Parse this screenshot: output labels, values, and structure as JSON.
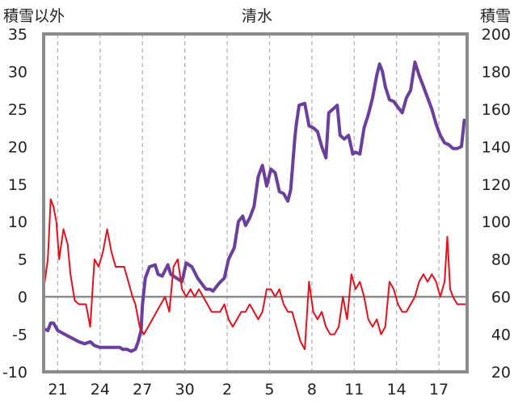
{
  "chart_data": {
    "type": "line",
    "title": "清水",
    "left_axis_label": "積雪以外",
    "right_axis_label": "積雪",
    "left_axis": {
      "min": -10,
      "max": 35,
      "ticks": [
        -10,
        -5,
        0,
        5,
        10,
        15,
        20,
        25,
        30,
        35
      ]
    },
    "right_axis": {
      "min": 20,
      "max": 200,
      "ticks": [
        20,
        40,
        60,
        80,
        100,
        120,
        140,
        160,
        180,
        200
      ]
    },
    "x_axis": {
      "min": 0,
      "max": 30,
      "tick_positions": [
        1,
        4,
        7,
        10,
        13,
        16,
        19,
        22,
        25,
        28
      ],
      "tick_labels": [
        "21",
        "24",
        "27",
        "30",
        "2",
        "5",
        "8",
        "11",
        "14",
        "17"
      ]
    },
    "grid": {
      "vertical": true,
      "style": "dashed",
      "zero_line": true
    },
    "colors": {
      "snow_depth": "#6b3fa0",
      "temperature": "#e8101a",
      "frame": "#8c8c8c",
      "zero_line": "#8c8c8c",
      "grid": "#b0b0b0"
    },
    "series": [
      {
        "axis": "right",
        "color": "#6b3fa0",
        "points": [
          [
            0.0,
            43
          ],
          [
            0.3,
            42
          ],
          [
            0.5,
            46
          ],
          [
            0.7,
            46
          ],
          [
            1.0,
            42
          ],
          [
            1.5,
            40
          ],
          [
            2.0,
            38
          ],
          [
            2.5,
            36
          ],
          [
            2.9,
            35
          ],
          [
            3.3,
            36
          ],
          [
            3.6,
            34
          ],
          [
            4.0,
            33
          ],
          [
            4.5,
            33
          ],
          [
            5.0,
            33
          ],
          [
            5.4,
            33
          ],
          [
            5.6,
            32
          ],
          [
            5.9,
            32
          ],
          [
            6.2,
            31
          ],
          [
            6.5,
            32
          ],
          [
            6.7,
            36
          ],
          [
            6.9,
            42
          ],
          [
            7.0,
            56
          ],
          [
            7.2,
            70
          ],
          [
            7.5,
            76
          ],
          [
            7.9,
            77
          ],
          [
            8.1,
            72
          ],
          [
            8.4,
            71
          ],
          [
            8.8,
            77
          ],
          [
            9.0,
            72
          ],
          [
            9.4,
            70
          ],
          [
            9.8,
            68
          ],
          [
            10.1,
            78
          ],
          [
            10.5,
            76
          ],
          [
            10.9,
            70
          ],
          [
            11.2,
            67
          ],
          [
            11.5,
            64
          ],
          [
            11.8,
            64
          ],
          [
            12.0,
            63
          ],
          [
            12.4,
            67
          ],
          [
            12.8,
            70
          ],
          [
            13.1,
            80
          ],
          [
            13.5,
            86
          ],
          [
            13.8,
            100
          ],
          [
            14.1,
            103
          ],
          [
            14.3,
            98
          ],
          [
            14.6,
            102
          ],
          [
            14.9,
            108
          ],
          [
            15.2,
            124
          ],
          [
            15.5,
            130
          ],
          [
            15.8,
            119
          ],
          [
            16.1,
            128
          ],
          [
            16.4,
            126
          ],
          [
            16.7,
            116
          ],
          [
            17.0,
            115
          ],
          [
            17.3,
            111
          ],
          [
            17.5,
            117
          ],
          [
            17.8,
            145
          ],
          [
            17.9,
            152
          ],
          [
            18.1,
            162
          ],
          [
            18.5,
            163
          ],
          [
            18.8,
            151
          ],
          [
            19.1,
            150
          ],
          [
            19.4,
            148
          ],
          [
            19.7,
            140
          ],
          [
            19.9,
            136
          ],
          [
            20.0,
            134
          ],
          [
            20.2,
            158
          ],
          [
            20.5,
            160
          ],
          [
            20.8,
            162
          ],
          [
            21.0,
            146
          ],
          [
            21.3,
            144
          ],
          [
            21.6,
            146
          ],
          [
            21.9,
            136
          ],
          [
            22.1,
            137
          ],
          [
            22.4,
            136
          ],
          [
            22.7,
            150
          ],
          [
            23.0,
            157
          ],
          [
            23.3,
            166
          ],
          [
            23.6,
            178
          ],
          [
            23.8,
            184
          ],
          [
            24.0,
            180
          ],
          [
            24.2,
            172
          ],
          [
            24.5,
            165
          ],
          [
            24.8,
            164
          ],
          [
            25.1,
            161
          ],
          [
            25.4,
            158
          ],
          [
            25.7,
            166
          ],
          [
            26.0,
            170
          ],
          [
            26.3,
            185
          ],
          [
            26.6,
            178
          ],
          [
            26.9,
            172
          ],
          [
            27.2,
            166
          ],
          [
            27.5,
            160
          ],
          [
            27.8,
            152
          ],
          [
            28.1,
            146
          ],
          [
            28.4,
            142
          ],
          [
            28.7,
            141
          ],
          [
            29.0,
            139
          ],
          [
            29.3,
            139
          ],
          [
            29.6,
            140
          ],
          [
            29.8,
            154
          ],
          [
            30.0,
            152
          ]
        ]
      },
      {
        "axis": "left",
        "color": "#e8101a",
        "points": [
          [
            0.0,
            1
          ],
          [
            0.3,
            5
          ],
          [
            0.5,
            13
          ],
          [
            0.7,
            12
          ],
          [
            0.9,
            10
          ],
          [
            1.1,
            5
          ],
          [
            1.4,
            9
          ],
          [
            1.7,
            7
          ],
          [
            1.9,
            3
          ],
          [
            2.2,
            -0.5
          ],
          [
            2.5,
            -1
          ],
          [
            3.0,
            -1
          ],
          [
            3.3,
            -4
          ],
          [
            3.6,
            5
          ],
          [
            3.9,
            4
          ],
          [
            4.2,
            6
          ],
          [
            4.5,
            9
          ],
          [
            4.8,
            6
          ],
          [
            5.1,
            4
          ],
          [
            5.4,
            4
          ],
          [
            5.7,
            4
          ],
          [
            6.0,
            2
          ],
          [
            6.3,
            0
          ],
          [
            6.5,
            -1
          ],
          [
            6.8,
            -4
          ],
          [
            7.1,
            -5
          ],
          [
            7.4,
            -4
          ],
          [
            7.7,
            -3
          ],
          [
            8.0,
            -2
          ],
          [
            8.3,
            -1
          ],
          [
            8.6,
            0
          ],
          [
            8.9,
            -2
          ],
          [
            9.2,
            4
          ],
          [
            9.5,
            5
          ],
          [
            9.8,
            1
          ],
          [
            10.1,
            0
          ],
          [
            10.4,
            1
          ],
          [
            10.7,
            0
          ],
          [
            11.0,
            1
          ],
          [
            11.3,
            0
          ],
          [
            11.6,
            -1
          ],
          [
            11.9,
            -2
          ],
          [
            12.2,
            -2
          ],
          [
            12.5,
            -2
          ],
          [
            12.8,
            -1
          ],
          [
            13.1,
            -3
          ],
          [
            13.4,
            -4
          ],
          [
            13.7,
            -3
          ],
          [
            14.0,
            -2
          ],
          [
            14.3,
            -2
          ],
          [
            14.6,
            -1
          ],
          [
            14.9,
            -2
          ],
          [
            15.2,
            -3
          ],
          [
            15.5,
            -2
          ],
          [
            15.8,
            1
          ],
          [
            16.1,
            1
          ],
          [
            16.4,
            0
          ],
          [
            16.7,
            1
          ],
          [
            17.0,
            -1
          ],
          [
            17.3,
            -2
          ],
          [
            17.6,
            -2
          ],
          [
            17.9,
            -4
          ],
          [
            18.2,
            -6
          ],
          [
            18.5,
            -7
          ],
          [
            18.8,
            2
          ],
          [
            19.1,
            -2
          ],
          [
            19.4,
            -3
          ],
          [
            19.7,
            -2
          ],
          [
            20.0,
            -4
          ],
          [
            20.3,
            -5
          ],
          [
            20.6,
            -5
          ],
          [
            20.9,
            -4
          ],
          [
            21.2,
            0
          ],
          [
            21.5,
            -3
          ],
          [
            21.8,
            3
          ],
          [
            22.1,
            1
          ],
          [
            22.4,
            2
          ],
          [
            22.7,
            0
          ],
          [
            23.0,
            -3
          ],
          [
            23.3,
            -4
          ],
          [
            23.6,
            -3
          ],
          [
            23.9,
            -5
          ],
          [
            24.2,
            -4
          ],
          [
            24.5,
            2
          ],
          [
            24.8,
            1
          ],
          [
            25.1,
            -1
          ],
          [
            25.4,
            -2
          ],
          [
            25.7,
            -2
          ],
          [
            26.0,
            -1
          ],
          [
            26.3,
            0
          ],
          [
            26.6,
            2
          ],
          [
            26.9,
            3
          ],
          [
            27.2,
            2
          ],
          [
            27.5,
            3
          ],
          [
            27.8,
            2
          ],
          [
            28.1,
            0
          ],
          [
            28.4,
            2
          ],
          [
            28.6,
            8
          ],
          [
            28.8,
            1
          ],
          [
            29.0,
            0
          ],
          [
            29.3,
            -1
          ],
          [
            29.6,
            -1
          ],
          [
            30.0,
            -1
          ]
        ]
      }
    ]
  }
}
